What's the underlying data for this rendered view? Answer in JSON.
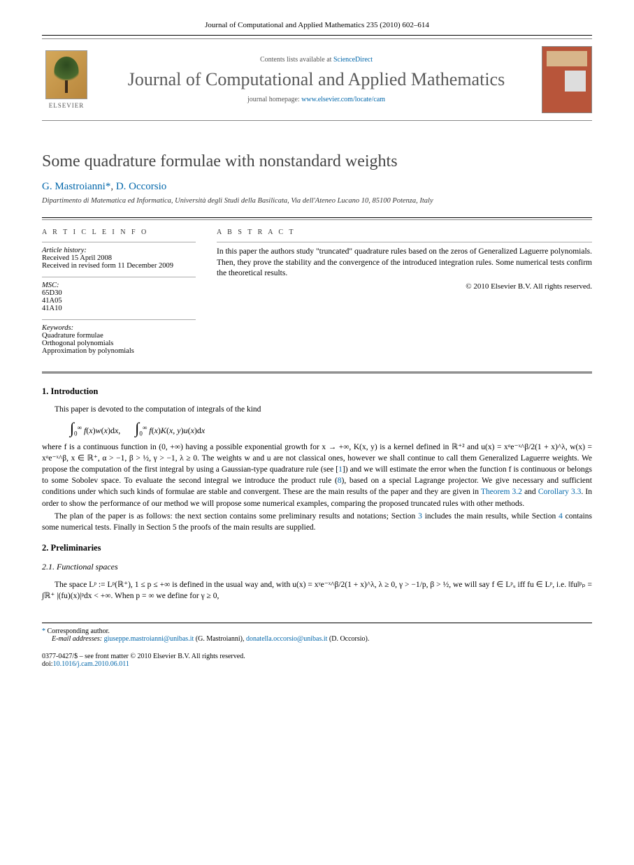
{
  "header": {
    "citation": "Journal of Computational and Applied Mathematics 235 (2010) 602–614",
    "contents_prefix": "Contents lists available at ",
    "contents_link": "ScienceDirect",
    "journal_name": "Journal of Computational and Applied Mathematics",
    "homepage_prefix": "journal homepage: ",
    "homepage_link": "www.elsevier.com/locate/cam",
    "elsevier_label": "ELSEVIER"
  },
  "article": {
    "title": "Some quadrature formulae with nonstandard weights",
    "authors_html": "G. Mastroianni *, D. Occorsio",
    "author1": "G. Mastroianni",
    "star": "*",
    "author_sep": ", ",
    "author2": "D. Occorsio",
    "affiliation": "Dipartimento di Matematica ed Informatica, Università degli Studi della Basilicata, Via dell'Ateneo Lucano 10, 85100 Potenza, Italy"
  },
  "info": {
    "heading": "A R T I C L E   I N F O",
    "history_label": "Article history:",
    "received": "Received 15 April 2008",
    "revised": "Received in revised form 11 December 2009",
    "msc_label": "MSC:",
    "msc": [
      "65D30",
      "41A05",
      "41A10"
    ],
    "keywords_label": "Keywords:",
    "keywords": [
      "Quadrature formulae",
      "Orthogonal polynomials",
      "Approximation by polynomials"
    ]
  },
  "abstract": {
    "heading": "A B S T R A C T",
    "text": "In this paper the authors study \"truncated\" quadrature rules based on the zeros of Generalized Laguerre polynomials. Then, they prove the stability and the convergence of the introduced integration rules. Some numerical tests confirm the theoretical results.",
    "copyright": "© 2010 Elsevier B.V. All rights reserved."
  },
  "sections": {
    "s1_title": "1.  Introduction",
    "s1_p1": "This paper is devoted to the computation of integrals of the kind",
    "s1_math": "∫₀^∞ f(x)w(x)dx,  ∫₀^∞ f(x)K(x, y)u(x)dx",
    "s1_p2a": "where f is a continuous function in (0, +∞) having a possible exponential growth for x → +∞, K(x, y) is a kernel defined in ℝ⁺² and u(x) = xᵅe⁻ˣ^β/2(1 + x)^λ, w(x) = xᵅe⁻ˣ^β, x ∈ ℝ⁺, α > −1, β > ½, γ > −1, λ ≥ 0. The weights w and u are not classical ones, however we shall continue to call them Generalized Laguerre weights. We propose the computation of the first integral by using a Gaussian-type quadrature rule (see [",
    "s1_ref1": "1",
    "s1_p2b": "]) and we will estimate the error when the function f is continuous or belongs to some Sobolev space. To evaluate the second integral we introduce the product rule (",
    "s1_ref8": "8",
    "s1_p2c": "), based on a special Lagrange projector. We give necessary and sufficient conditions under which such kinds of formulae are stable and convergent. These are the main results of the paper and they are given in ",
    "s1_thm": "Theorem 3.2",
    "s1_and": " and ",
    "s1_cor": "Corollary 3.3",
    "s1_p2d": ". In order to show the performance of our method we will propose some numerical examples, comparing the proposed truncated rules with other methods.",
    "s1_p3a": "The plan of the paper is as follows: the next section contains some preliminary results and notations; Section ",
    "s1_sec3": "3",
    "s1_p3b": " includes the main results, while Section ",
    "s1_sec4": "4",
    "s1_p3c": " contains some numerical tests. Finally in Section 5 the proofs of the main results are supplied.",
    "s2_title": "2.  Preliminaries",
    "s21_title": "2.1.  Functional spaces",
    "s21_p1": "The space Lᵖ := Lᵖ(ℝ⁺), 1 ≤ p ≤ +∞ is defined in the usual way and, with u(x) = xᵞe⁻ˣ^β/2(1 + x)^λ, λ ≥ 0, γ > −1/p, β > ½, we will say f ∈ Lᵖᵤ iff fu ∈ Lᵖ, i.e. ‖fu‖ᵖₚ = ∫ℝ⁺ |(fu)(x)|ᵖdx < +∞. When p = ∞ we define for γ ≥ 0,"
  },
  "footnotes": {
    "corr": "Corresponding author.",
    "email_label": "E-mail addresses: ",
    "email1": "giuseppe.mastroianni@unibas.it",
    "email1_who": " (G. Mastroianni), ",
    "email2": "donatella.occorsio@unibas.it",
    "email2_who": " (D. Occorsio)."
  },
  "doi": {
    "front_matter": "0377-0427/$ – see front matter © 2010 Elsevier B.V. All rights reserved.",
    "doi_label": "doi:",
    "doi_link": "10.1016/j.cam.2010.06.011"
  },
  "colors": {
    "link": "#0066aa",
    "cover_bg": "#b8553a",
    "text_gray": "#444444"
  }
}
